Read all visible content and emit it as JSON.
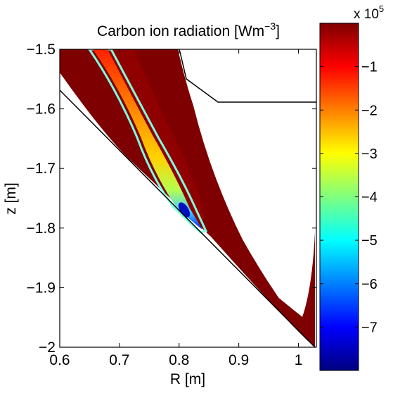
{
  "chart_data": {
    "type": "heatmap",
    "title_main": "Carbon ion radiation [Wm",
    "title_exp": "−3",
    "title_close": "]",
    "xlabel": "R [m]",
    "ylabel": "z [m]",
    "xlim": [
      0.6,
      1.03
    ],
    "ylim": [
      -2.0,
      -1.5
    ],
    "x_ticks": [
      0.6,
      0.7,
      0.8,
      0.9,
      1.0
    ],
    "x_tick_labels": [
      "0.6",
      "0.7",
      "0.8",
      "0.9",
      "1"
    ],
    "y_ticks": [
      -1.5,
      -1.6,
      -1.7,
      -1.8,
      -1.9,
      -2.0
    ],
    "y_tick_labels": [
      "−1.5",
      "−1.6",
      "−1.7",
      "−1.8",
      "−1.9",
      "−2"
    ],
    "colorbar": {
      "colormap": "jet",
      "range": [
        -8.0,
        0.0
      ],
      "ticks": [
        -1,
        -2,
        -3,
        -4,
        -5,
        -6,
        -7
      ],
      "tick_labels": [
        "−1",
        "−2",
        "−3",
        "−4",
        "−5",
        "−6",
        "−7"
      ],
      "multiplier_base": "x 10",
      "multiplier_exp": "5"
    },
    "background_value": 0.0,
    "radiation_band": {
      "description": "narrow strong-radiation channel along the inner divertor leg",
      "centerline": [
        {
          "r": 0.665,
          "z": -1.5,
          "value": -1.1
        },
        {
          "r": 0.69,
          "z": -1.55,
          "value": -1.4
        },
        {
          "r": 0.72,
          "z": -1.6,
          "value": -1.9
        },
        {
          "r": 0.745,
          "z": -1.65,
          "value": -2.5
        },
        {
          "r": 0.77,
          "z": -1.7,
          "value": -3.2
        },
        {
          "r": 0.79,
          "z": -1.75,
          "value": -4.5
        },
        {
          "r": 0.81,
          "z": -1.78,
          "value": -7.5
        }
      ],
      "edge_value": -5.0
    },
    "colors": {
      "band_edge": "#7fffdf",
      "wall": "#000000",
      "frame": "#000000"
    }
  }
}
